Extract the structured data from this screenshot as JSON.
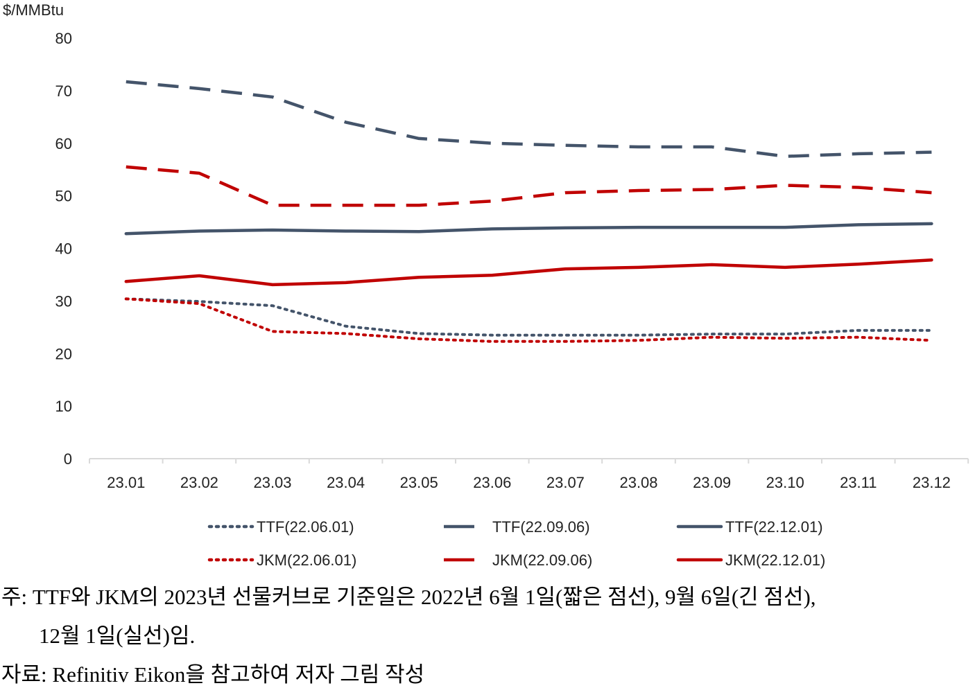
{
  "chart_data": {
    "type": "line",
    "title": "",
    "ylabel": "$/MMBtu",
    "xlabel": "",
    "ylim": [
      0,
      80
    ],
    "yticks": [
      0,
      10,
      20,
      30,
      40,
      50,
      60,
      70,
      80
    ],
    "grid": false,
    "legend_placement": "bottom",
    "categories": [
      "23.01",
      "23.02",
      "23.03",
      "23.04",
      "23.05",
      "23.06",
      "23.07",
      "23.08",
      "23.09",
      "23.10",
      "23.11",
      "23.12"
    ],
    "series": [
      {
        "name": "TTF(22.06.01)",
        "color": "#44546a",
        "style": "dotted",
        "values": [
          30.4,
          29.9,
          29.1,
          25.2,
          23.8,
          23.5,
          23.5,
          23.5,
          23.7,
          23.7,
          24.4,
          24.4
        ]
      },
      {
        "name": "TTF(22.09.06)",
        "color": "#44546a",
        "style": "dashed",
        "values": [
          71.7,
          70.4,
          68.8,
          64.0,
          60.9,
          60.0,
          59.6,
          59.3,
          59.3,
          57.5,
          58.0,
          58.3
        ]
      },
      {
        "name": "TTF(22.12.01)",
        "color": "#44546a",
        "style": "solid",
        "values": [
          42.8,
          43.3,
          43.5,
          43.3,
          43.2,
          43.7,
          43.9,
          44.0,
          44.0,
          44.0,
          44.5,
          44.7
        ]
      },
      {
        "name": "JKM(22.06.01)",
        "color": "#c00000",
        "style": "dotted",
        "values": [
          30.4,
          29.5,
          24.2,
          23.8,
          22.8,
          22.3,
          22.3,
          22.5,
          23.1,
          22.9,
          23.1,
          22.5
        ]
      },
      {
        "name": "JKM(22.09.06)",
        "color": "#c00000",
        "style": "dashed",
        "values": [
          55.5,
          54.3,
          48.2,
          48.2,
          48.2,
          49.0,
          50.6,
          51.0,
          51.2,
          52.0,
          51.6,
          50.6
        ]
      },
      {
        "name": "JKM(22.12.01)",
        "color": "#c00000",
        "style": "solid",
        "values": [
          33.7,
          34.8,
          33.1,
          33.5,
          34.5,
          34.9,
          36.1,
          36.4,
          36.9,
          36.4,
          37.0,
          37.8
        ]
      }
    ]
  },
  "notes": {
    "note_line1": "주: TTF와 JKM의 2023년 선물커브로 기준일은 2022년 6월 1일(짧은 점선), 9월 6일(긴 점선),",
    "note_line2": "12월 1일(실선)임.",
    "source": "자료: Refinitiv Eikon을 참고하여 저자 그림 작성"
  }
}
